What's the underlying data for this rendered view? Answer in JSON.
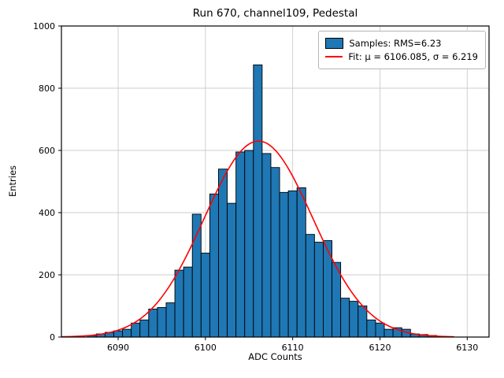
{
  "chart_data": {
    "type": "bar",
    "subtype": "histogram",
    "title": "Run 670, channel109, Pedestal",
    "xlabel": "ADC Counts",
    "ylabel": "Entries",
    "xlim": [
      6083.5,
      6132.5
    ],
    "ylim": [
      0,
      1000
    ],
    "xticks": [
      6090,
      6100,
      6110,
      6120,
      6130
    ],
    "yticks": [
      0,
      200,
      400,
      600,
      800,
      1000
    ],
    "grid": true,
    "bin_width": 1,
    "bar_color": "#1f77b4",
    "bar_edge_color": "#000000",
    "bins": [
      6087,
      6088,
      6089,
      6090,
      6091,
      6092,
      6093,
      6094,
      6095,
      6096,
      6097,
      6098,
      6099,
      6100,
      6101,
      6102,
      6103,
      6104,
      6105,
      6106,
      6107,
      6108,
      6109,
      6110,
      6111,
      6112,
      6113,
      6114,
      6115,
      6116,
      6117,
      6118,
      6119,
      6120,
      6121,
      6122,
      6123,
      6124,
      6125,
      6126
    ],
    "counts": [
      5,
      10,
      15,
      20,
      25,
      45,
      55,
      90,
      95,
      110,
      215,
      225,
      395,
      270,
      460,
      540,
      430,
      595,
      600,
      875,
      590,
      545,
      465,
      470,
      480,
      330,
      305,
      310,
      240,
      125,
      115,
      100,
      55,
      45,
      25,
      30,
      25,
      10,
      8,
      5
    ],
    "fit": {
      "mu": 6106.085,
      "sigma": 6.219,
      "amplitude": 630,
      "range": [
        6083.5,
        6128.5
      ],
      "color": "#ff0000"
    },
    "legend": [
      {
        "label": "Samples: RMS=6.23",
        "marker": "patch",
        "color": "#1f77b4"
      },
      {
        "label": "Fit: μ = 6106.085, σ = 6.219",
        "marker": "line",
        "color": "#ff0000"
      }
    ],
    "legend_position": "upper right"
  }
}
